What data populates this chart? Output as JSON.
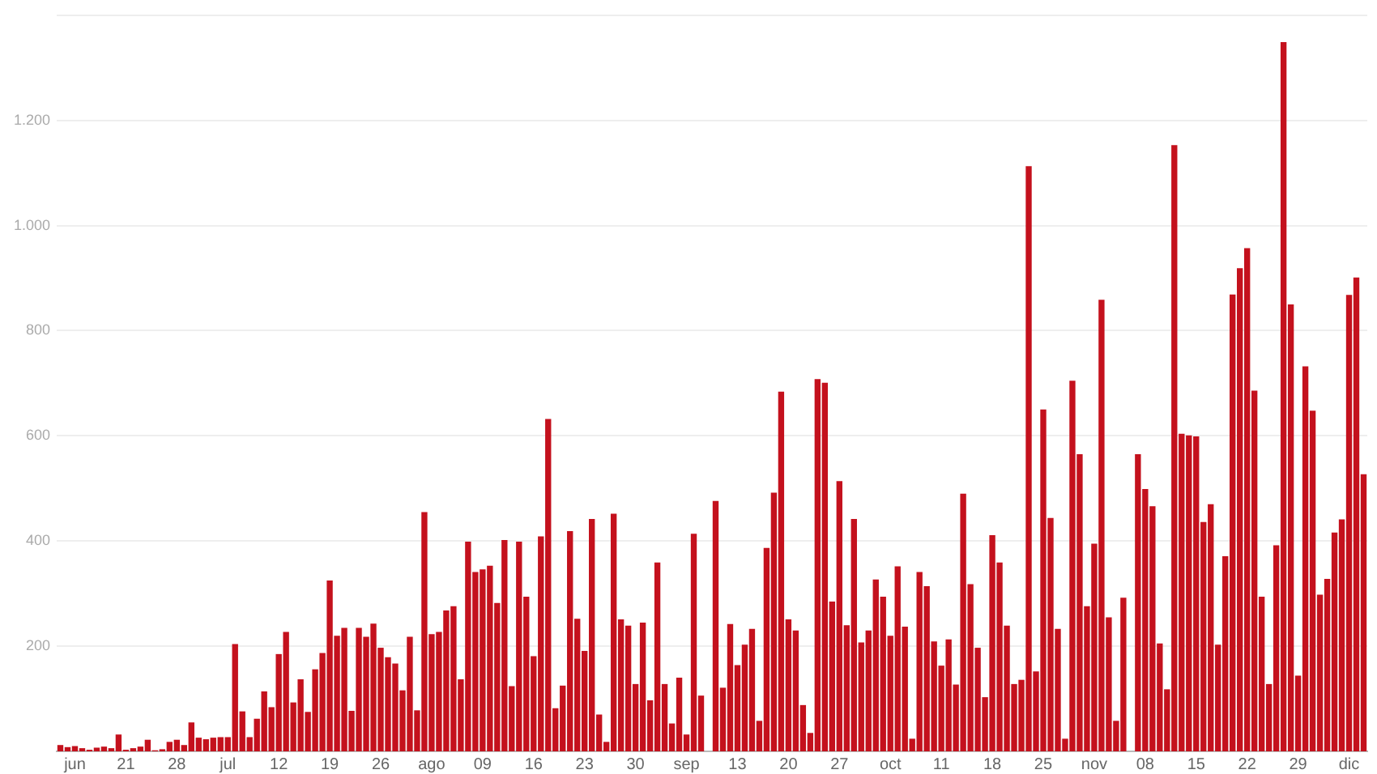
{
  "chart_data": {
    "type": "bar",
    "categories": [
      null,
      null,
      "jun",
      null,
      null,
      null,
      null,
      null,
      null,
      "21",
      null,
      null,
      null,
      null,
      null,
      null,
      "28",
      null,
      null,
      null,
      null,
      null,
      null,
      "jul",
      null,
      null,
      null,
      null,
      null,
      null,
      "12",
      null,
      null,
      null,
      null,
      null,
      null,
      "19",
      null,
      null,
      null,
      null,
      null,
      null,
      "26",
      null,
      null,
      null,
      null,
      null,
      null,
      "ago",
      null,
      null,
      null,
      null,
      null,
      null,
      "09",
      null,
      null,
      null,
      null,
      null,
      null,
      "16",
      null,
      null,
      null,
      null,
      null,
      null,
      "23",
      null,
      null,
      null,
      null,
      null,
      null,
      "30",
      null,
      null,
      null,
      null,
      null,
      null,
      "sep",
      null,
      null,
      null,
      null,
      null,
      null,
      "13",
      null,
      null,
      null,
      null,
      null,
      null,
      "20",
      null,
      null,
      null,
      null,
      null,
      null,
      "27",
      null,
      null,
      null,
      null,
      null,
      null,
      "oct",
      null,
      null,
      null,
      null,
      null,
      null,
      "11",
      null,
      null,
      null,
      null,
      null,
      null,
      "18",
      null,
      null,
      null,
      null,
      null,
      null,
      "25",
      null,
      null,
      null,
      null,
      null,
      null,
      "nov",
      null,
      null,
      null,
      null,
      null,
      null,
      "08",
      null,
      null,
      null,
      null,
      null,
      null,
      "15",
      null,
      null,
      null,
      null,
      null,
      null,
      "22",
      null,
      null,
      null,
      null,
      null,
      null,
      "29",
      null,
      null,
      null,
      null,
      null,
      null,
      "dic",
      null,
      null
    ],
    "values": [
      12,
      8,
      10,
      6,
      3,
      7,
      9,
      6,
      32,
      3,
      6,
      9,
      22,
      2,
      4,
      18,
      22,
      12,
      55,
      26,
      23,
      26,
      27,
      27,
      204,
      76,
      27,
      62,
      114,
      84,
      185,
      227,
      93,
      137,
      75,
      156,
      187,
      325,
      220,
      235,
      77,
      235,
      218,
      243,
      197,
      179,
      167,
      116,
      218,
      78,
      455,
      223,
      227,
      268,
      276,
      137,
      399,
      341,
      346,
      353,
      282,
      402,
      124,
      399,
      294,
      181,
      409,
      632,
      82,
      125,
      419,
      252,
      191,
      442,
      70,
      18,
      452,
      251,
      239,
      128,
      245,
      97,
      359,
      128,
      53,
      140,
      32,
      414,
      106,
      0,
      476,
      121,
      242,
      164,
      203,
      233,
      58,
      387,
      492,
      684,
      251,
      230,
      88,
      35,
      708,
      701,
      285,
      514,
      240,
      442,
      207,
      230,
      327,
      294,
      220,
      352,
      237,
      24,
      341,
      314,
      209,
      163,
      213,
      127,
      490,
      318,
      197,
      103,
      411,
      359,
      239,
      128,
      136,
      1113,
      152,
      650,
      444,
      233,
      24,
      705,
      565,
      276,
      395,
      859,
      255,
      58,
      292,
      0,
      565,
      499,
      466,
      205,
      118,
      1153,
      604,
      601,
      599,
      436,
      470,
      203,
      371,
      869,
      919,
      957,
      686,
      294,
      128,
      392,
      1349,
      850,
      144,
      732,
      648,
      298,
      328,
      416,
      441,
      868,
      901,
      527
    ],
    "color": "#c4111d",
    "ylim": [
      0,
      1400
    ],
    "yticks": [
      {
        "value": 200,
        "label": "200"
      },
      {
        "value": 400,
        "label": "400"
      },
      {
        "value": 600,
        "label": "600"
      },
      {
        "value": 800,
        "label": "800"
      },
      {
        "value": 1000,
        "label": "1.000"
      },
      {
        "value": 1200,
        "label": "1.200"
      },
      {
        "value": 1400,
        "label": null
      }
    ],
    "grid": "y"
  }
}
